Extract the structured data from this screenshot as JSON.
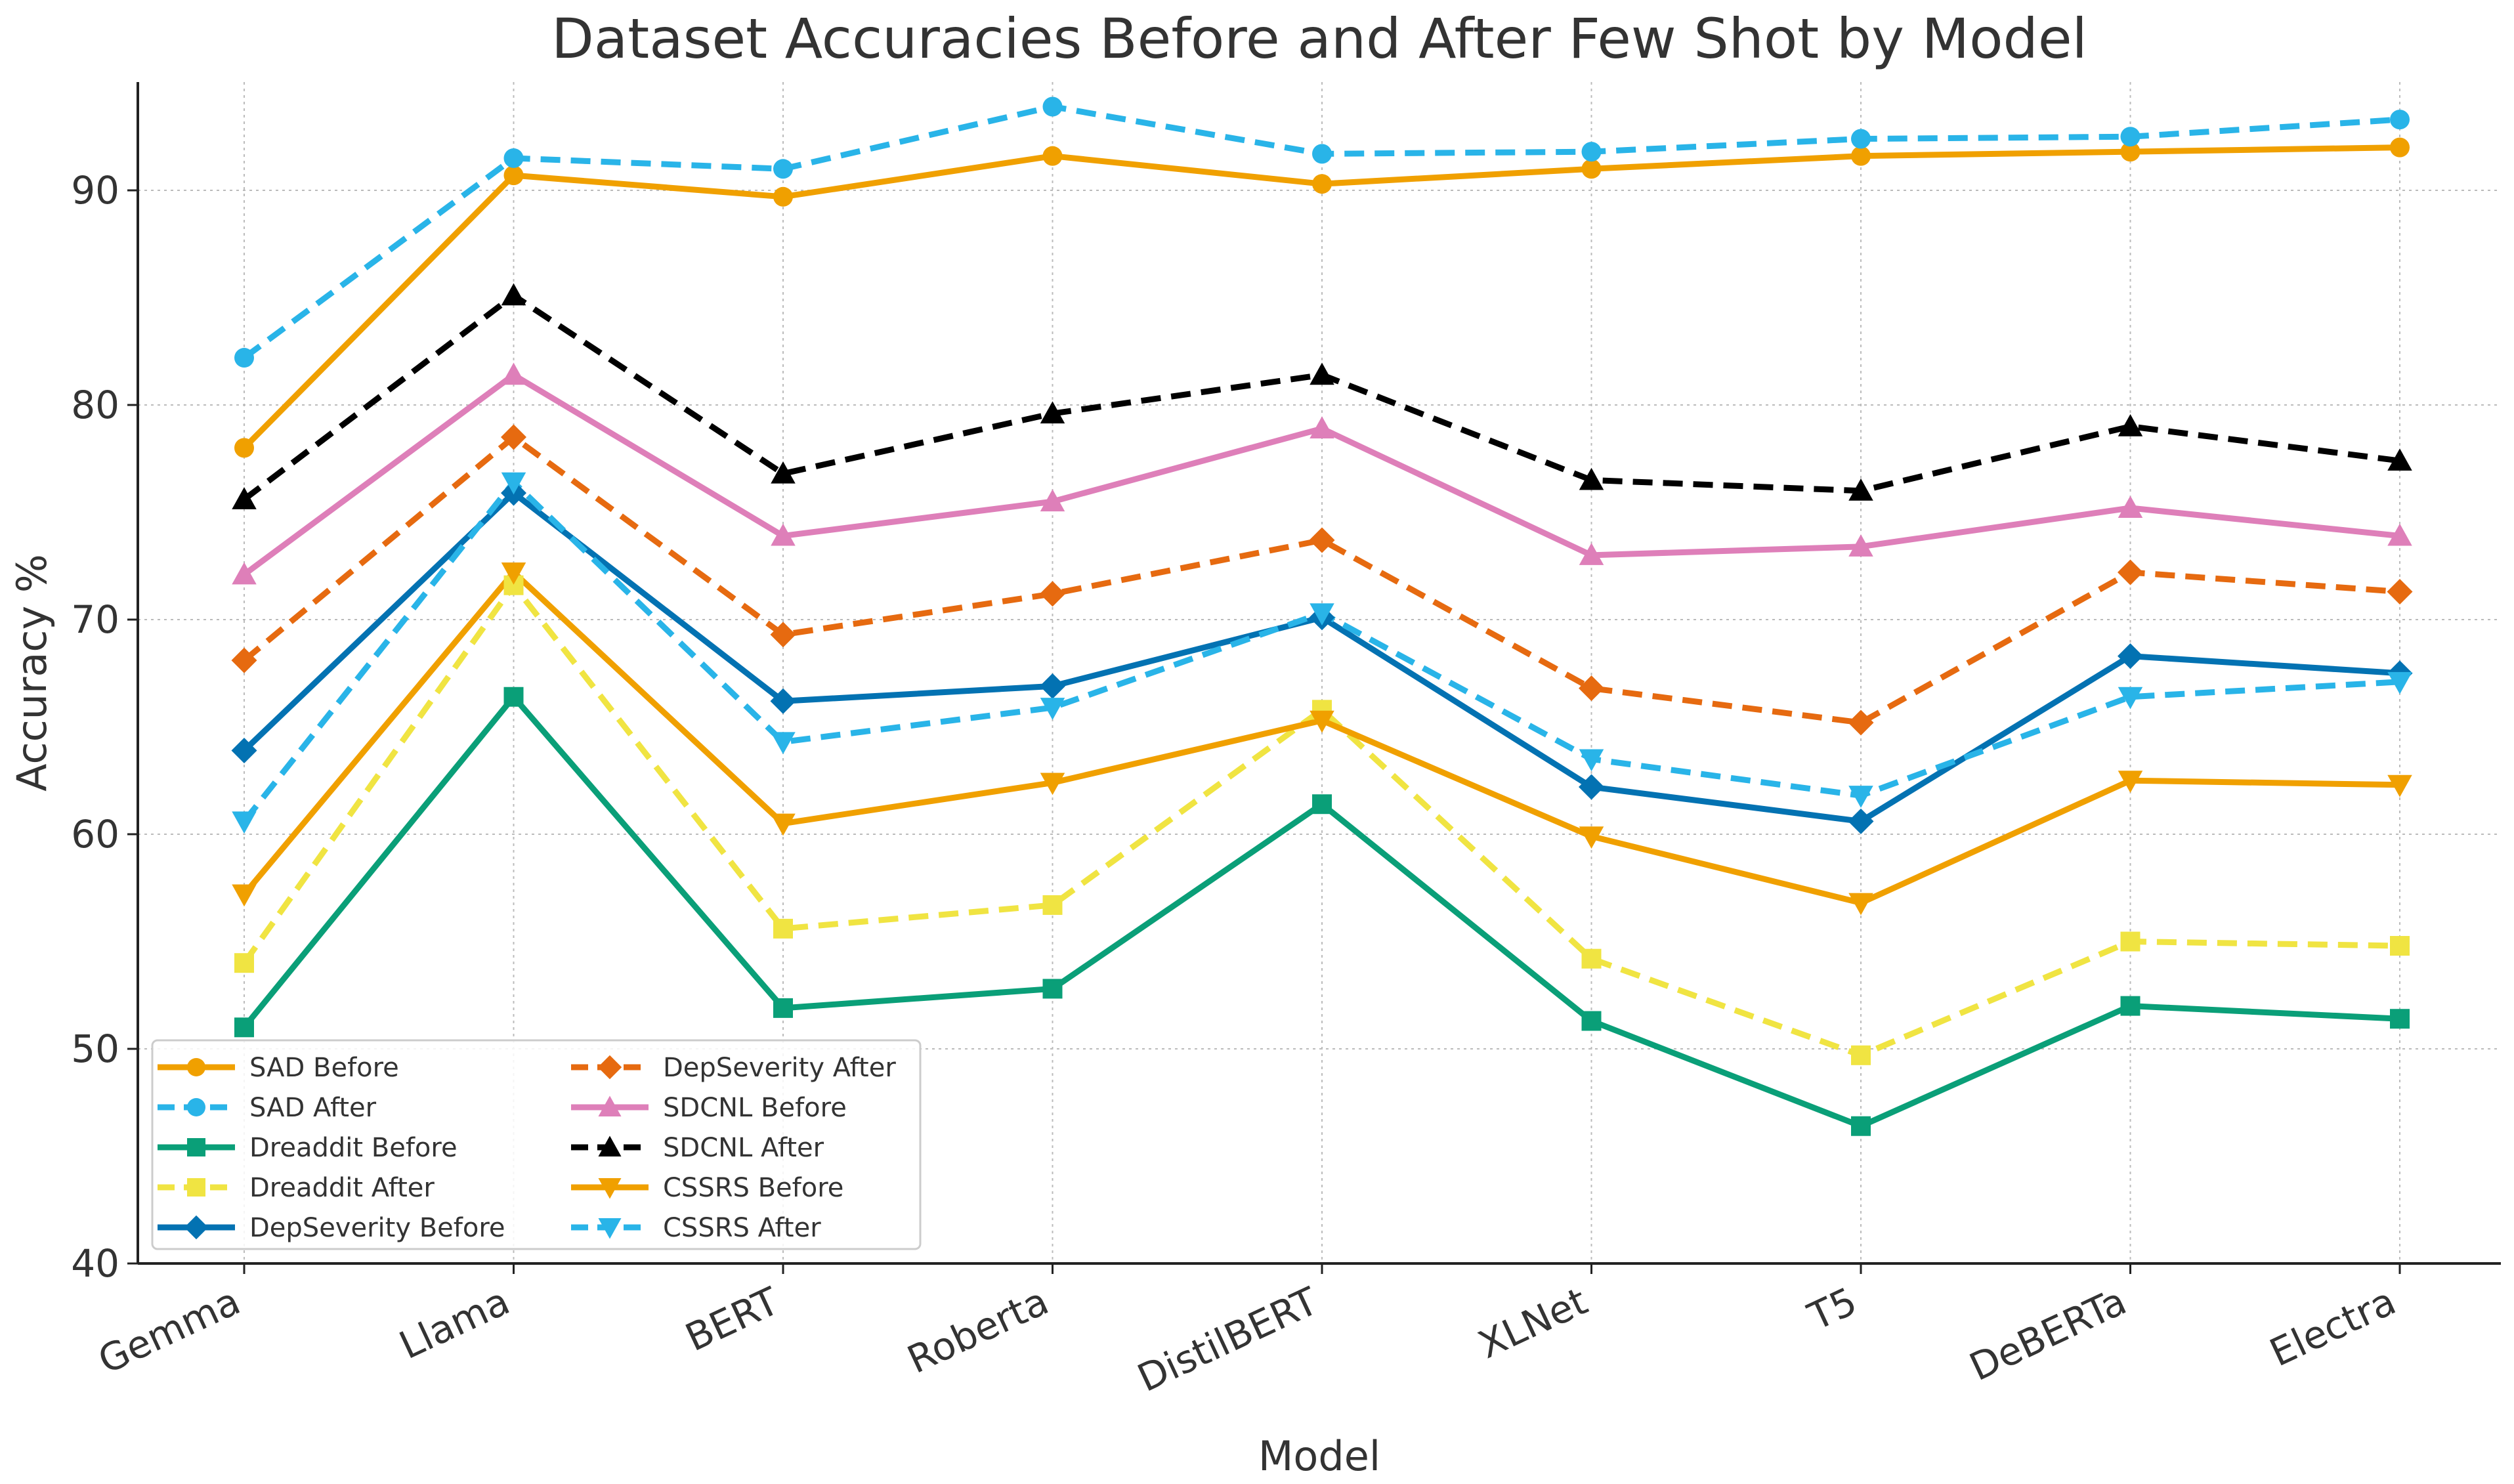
{
  "chart_data": {
    "type": "line",
    "title": "Dataset Accuracies Before and After Few Shot by Model",
    "xlabel": "Model",
    "ylabel": "Accuracy %",
    "ylim": [
      40,
      95
    ],
    "yticks": [
      40,
      50,
      60,
      70,
      80,
      90
    ],
    "ytick_labels": [
      "40",
      "50",
      "60",
      "70",
      "80",
      "90"
    ],
    "grid": true,
    "legend_position": "lower-left",
    "categories": [
      "Gemma",
      "Llama",
      "BERT",
      "Roberta",
      "DistilBERT",
      "XLNet",
      "T5",
      "DeBERTa",
      "Electra"
    ],
    "series": [
      {
        "name": "SAD Before",
        "color": "#F0A000",
        "dash": "solid",
        "marker": "circle",
        "values": [
          78.0,
          90.7,
          89.7,
          91.6,
          90.3,
          91.0,
          91.6,
          91.8,
          92.0
        ]
      },
      {
        "name": "SAD After",
        "color": "#29B4E8",
        "dash": "dashed",
        "marker": "circle",
        "values": [
          82.2,
          91.5,
          91.0,
          93.9,
          91.7,
          91.8,
          92.4,
          92.5,
          93.3
        ]
      },
      {
        "name": "Dreaddit Before",
        "color": "#0A9F78",
        "dash": "solid",
        "marker": "square",
        "values": [
          51.0,
          66.4,
          51.9,
          52.8,
          61.4,
          51.3,
          46.4,
          52.0,
          51.4
        ]
      },
      {
        "name": "Dreaddit After",
        "color": "#F0E442",
        "dash": "dashed",
        "marker": "square",
        "values": [
          54.0,
          71.6,
          55.6,
          56.7,
          65.8,
          54.2,
          49.7,
          55.0,
          54.8
        ]
      },
      {
        "name": "DepSeverity Before",
        "color": "#0372B2",
        "dash": "solid",
        "marker": "diamond",
        "values": [
          63.9,
          75.9,
          66.2,
          66.9,
          70.1,
          62.2,
          60.6,
          68.3,
          67.5
        ]
      },
      {
        "name": "DepSeverity After",
        "color": "#E66A10",
        "dash": "dashed",
        "marker": "diamond",
        "values": [
          68.1,
          78.5,
          69.3,
          71.2,
          73.7,
          66.8,
          65.2,
          72.2,
          71.3
        ]
      },
      {
        "name": "SDCNL Before",
        "color": "#DE7FB9",
        "dash": "solid",
        "marker": "triangle-up",
        "values": [
          72.1,
          81.4,
          73.9,
          75.5,
          78.9,
          73.0,
          73.4,
          75.2,
          73.9
        ]
      },
      {
        "name": "SDCNL After",
        "color": "#000000",
        "dash": "dashed",
        "marker": "triangle-up",
        "values": [
          75.6,
          85.1,
          76.8,
          79.6,
          81.4,
          76.5,
          76.0,
          79.0,
          77.4
        ]
      },
      {
        "name": "CSSRS Before",
        "color": "#F0A000",
        "dash": "solid",
        "marker": "triangle-down",
        "values": [
          57.2,
          72.2,
          60.5,
          62.4,
          65.3,
          59.9,
          56.8,
          62.5,
          62.3
        ]
      },
      {
        "name": "CSSRS After",
        "color": "#29B4E8",
        "dash": "dashed",
        "marker": "triangle-down",
        "values": [
          60.6,
          76.4,
          64.3,
          65.9,
          70.3,
          63.5,
          61.8,
          66.4,
          67.1
        ]
      }
    ]
  }
}
